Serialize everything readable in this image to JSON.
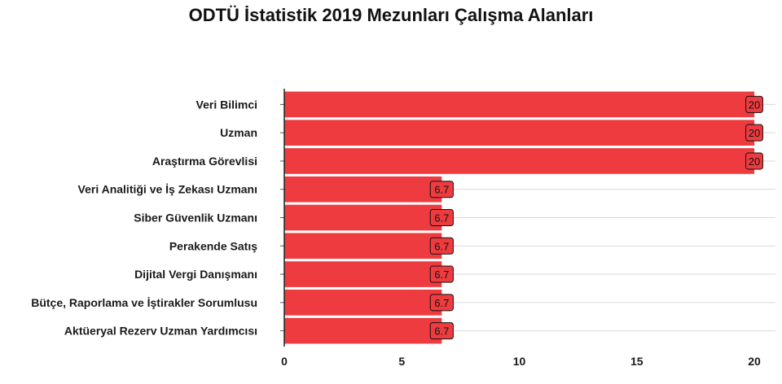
{
  "chart_data": {
    "type": "bar",
    "orientation": "horizontal",
    "title": "ODTÜ İstatistik 2019 Mezunları Çalışma Alanları",
    "categories": [
      "Veri Bilimci",
      "Uzman",
      "Araştırma Görevlisi",
      "Veri Analitiği ve İş Zekası Uzmanı",
      "Siber Güvenlik Uzmanı",
      "Perakende Satış",
      "Dijital Vergi Danışmanı",
      "Bütçe, Raporlama ve İştirakler Sorumlusu",
      "Aktüeryal Rezerv Uzman Yardımcısı"
    ],
    "values": [
      20,
      20,
      20,
      6.7,
      6.7,
      6.7,
      6.7,
      6.7,
      6.7
    ],
    "data_labels": [
      "20",
      "20",
      "20",
      "6.7",
      "6.7",
      "6.7",
      "6.7",
      "6.7",
      "6.7"
    ],
    "xlim": [
      0,
      20.9
    ],
    "xticks": [
      0,
      5,
      10,
      15,
      20
    ],
    "xlabel": "",
    "ylabel": "",
    "grid": "horizontal",
    "legend": "none",
    "colors": {
      "bar": "#ee3b3f",
      "grid": "#d9d9d9",
      "axis": "#222222"
    }
  }
}
